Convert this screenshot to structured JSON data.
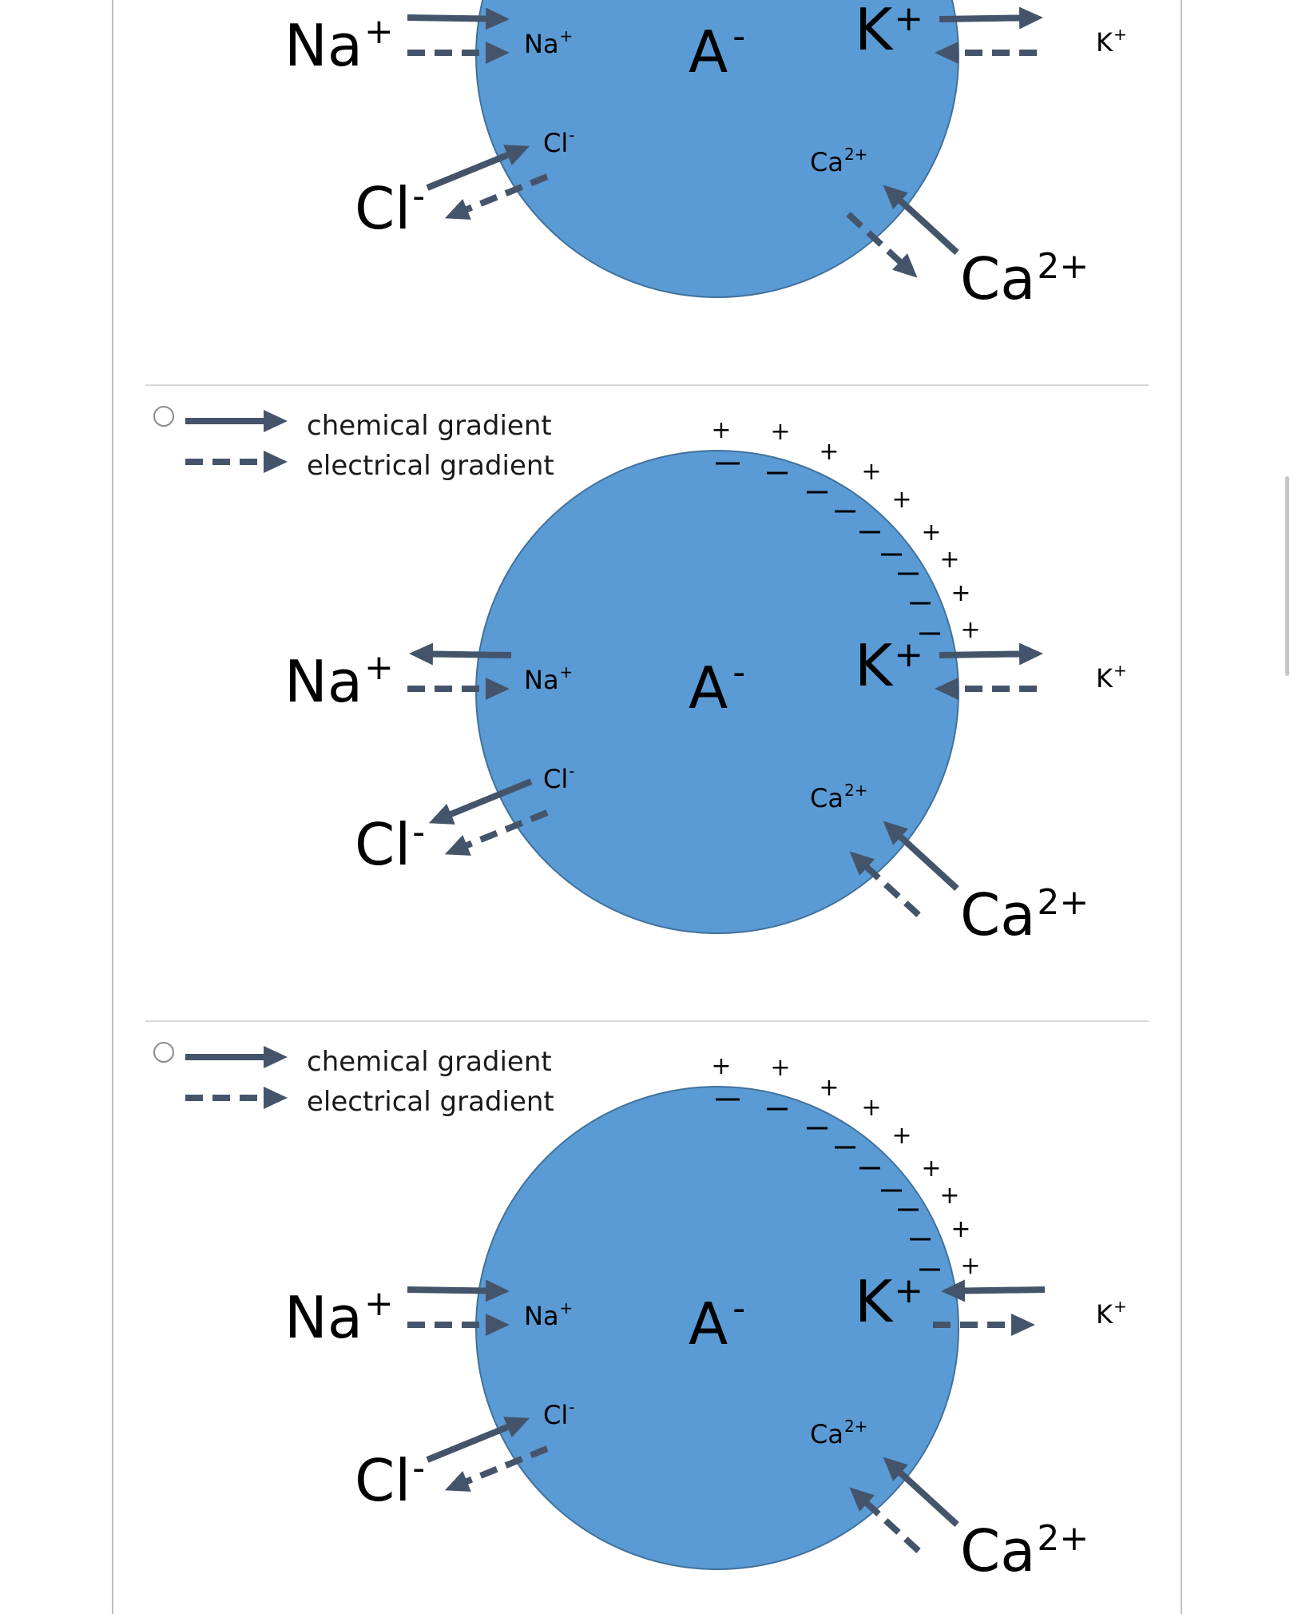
{
  "legend": {
    "chemical": "chemical gradient",
    "electrical": "electrical gradient"
  },
  "colors": {
    "cell_fill": "#5b9bd5",
    "cell_stroke": "#41719c",
    "arrow": "#44546a",
    "divider": "#d9d9d9",
    "frame": "#bfbfbf"
  },
  "labels": {
    "na_out": "Na",
    "na_out_sup": "+",
    "na_in": "Na",
    "na_in_sup": "+",
    "cl_out": "Cl",
    "cl_out_sup": "-",
    "cl_in": "Cl",
    "cl_in_sup": "-",
    "k_in": "K",
    "k_in_sup": "+",
    "k_out": "K",
    "k_out_sup": "+",
    "ca_in": "Ca",
    "ca_in_sup": "2+",
    "ca_out": "Ca",
    "ca_out_sup": "2+",
    "anion": "A",
    "anion_sup": "-",
    "plus": "+"
  },
  "options": [
    {
      "id": "option-1",
      "has_radio": false,
      "has_legend": false,
      "arrows": {
        "na_chemical": "in",
        "na_electrical": "in",
        "cl_chemical": "in",
        "cl_electrical": "out",
        "k_chemical": "out",
        "k_electrical": "in",
        "ca_chemical": "in",
        "ca_electrical": "out"
      }
    },
    {
      "id": "option-2",
      "has_radio": true,
      "has_legend": true,
      "arrows": {
        "na_chemical": "out",
        "na_electrical": "in",
        "cl_chemical": "out",
        "cl_electrical": "out",
        "k_chemical": "out",
        "k_electrical": "in",
        "ca_chemical": "in",
        "ca_electrical": "in"
      }
    },
    {
      "id": "option-3",
      "has_radio": true,
      "has_legend": true,
      "arrows": {
        "na_chemical": "in",
        "na_electrical": "in",
        "cl_chemical": "in",
        "cl_electrical": "out",
        "k_chemical": "in",
        "k_electrical": "out",
        "ca_chemical": "in",
        "ca_electrical": "in"
      }
    }
  ]
}
